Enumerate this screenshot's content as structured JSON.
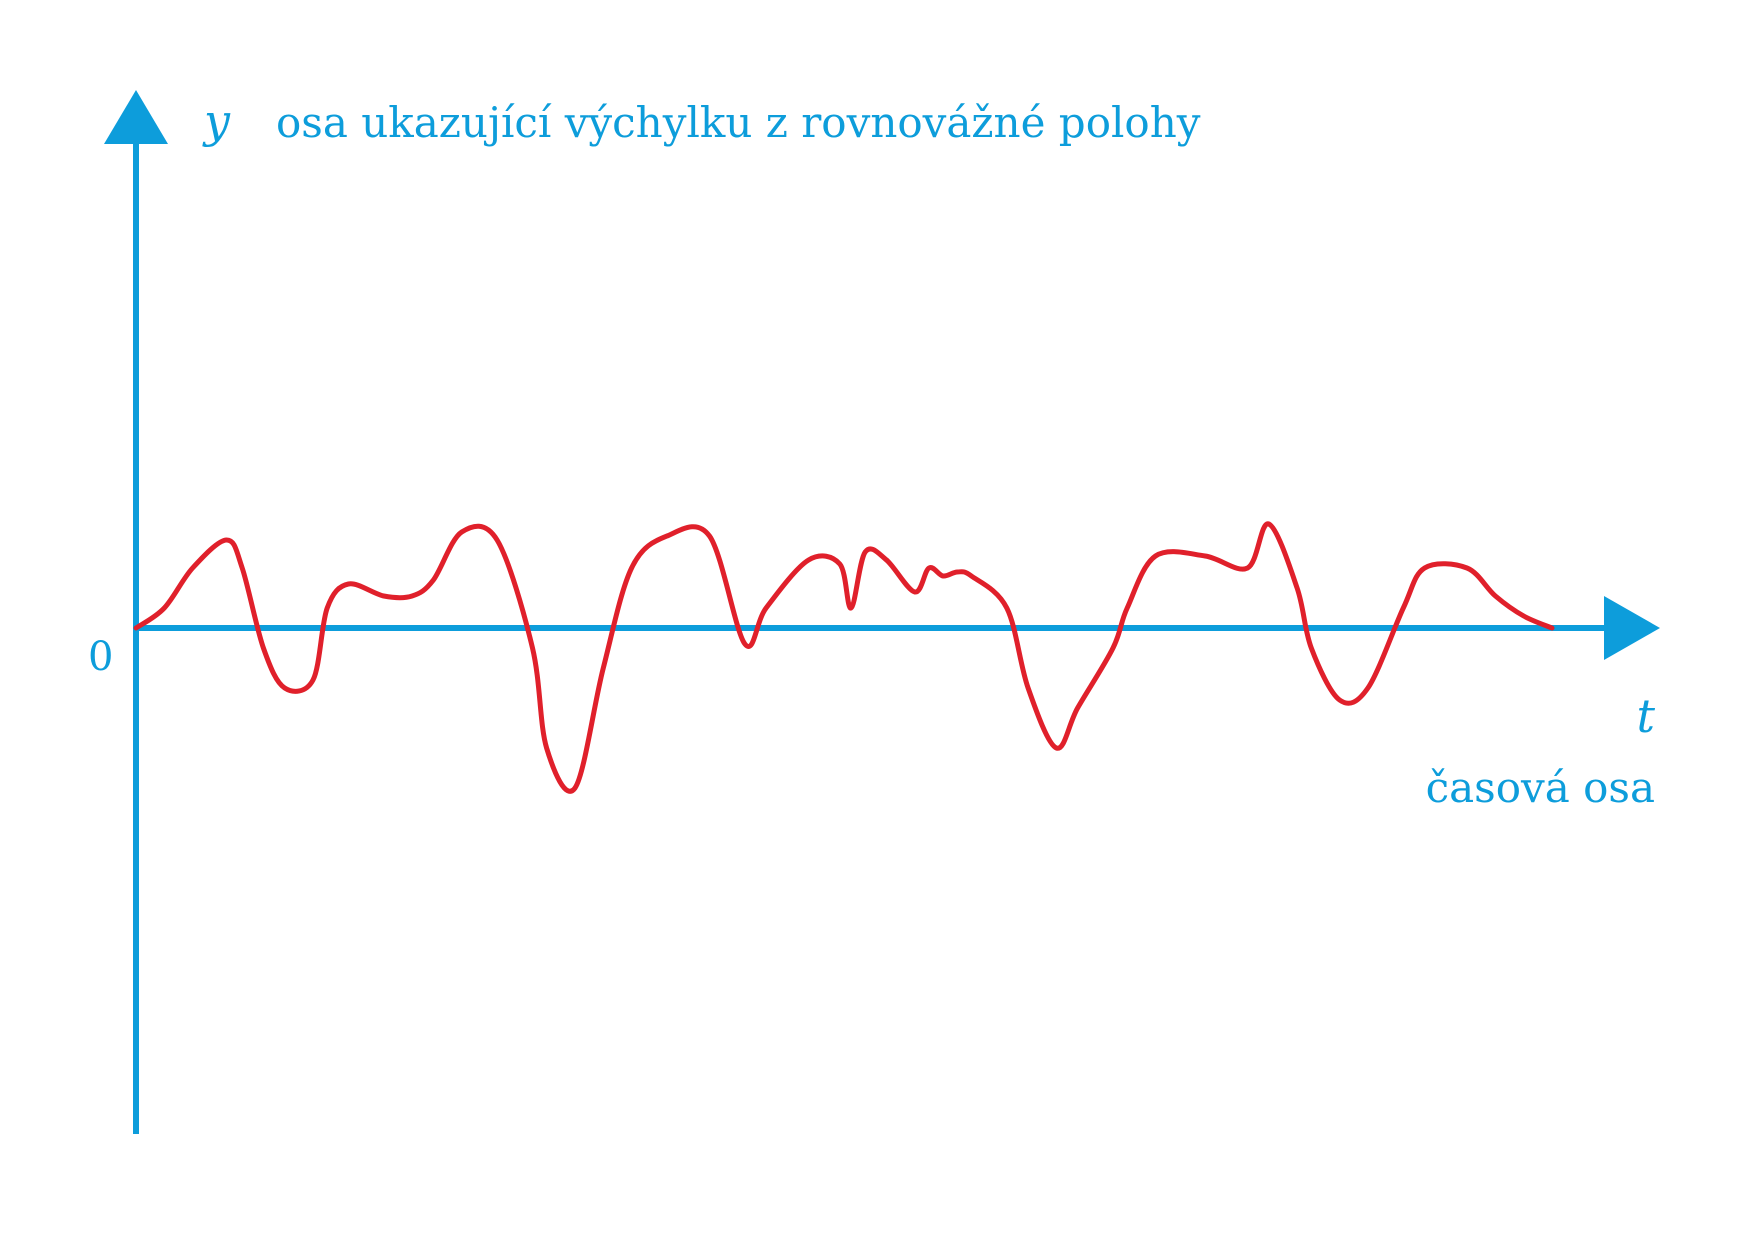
{
  "colors": {
    "axis": "#0d9ddb",
    "curve": "#e0202b",
    "background": "#ffffff"
  },
  "labels": {
    "y_symbol": "y",
    "y_description": "osa ukazující výchylku z rovnovážné polohy",
    "origin": "0",
    "t_symbol": "t",
    "t_description": "časová osa"
  },
  "chart_data": {
    "type": "line",
    "xlabel": "časová osa",
    "ylabel": "osa ukazující výchylku z rovnovážné polohy",
    "xlim": [
      0,
      100
    ],
    "ylim": [
      -5,
      5
    ],
    "grid": false,
    "series": [
      {
        "x": [
          0,
          2,
          4,
          6.4,
          7.5,
          9,
          10.5,
          12.5,
          13.5,
          15,
          17.5,
          19.5,
          21,
          23,
          25.5,
          28,
          29,
          31,
          33,
          35,
          37.5,
          40.5,
          43,
          44.5,
          47.5,
          49.7,
          50.5,
          51.5,
          53,
          55,
          56,
          57,
          58,
          59,
          61.5,
          63,
          65,
          66.5,
          69,
          70,
          72,
          75.5,
          78.5,
          80,
          82,
          83,
          85,
          87,
          89.5,
          91,
          94,
          96,
          98,
          100
        ],
        "y": [
          0,
          0.5,
          1.5,
          2.2,
          1.5,
          -0.5,
          -1.5,
          -1.3,
          0.5,
          1.1,
          0.8,
          0.8,
          1.2,
          2.4,
          2.2,
          -0.5,
          -3.0,
          -4.0,
          -1.0,
          1.5,
          2.3,
          2.3,
          -0.4,
          0.5,
          1.7,
          1.6,
          0.5,
          1.9,
          1.7,
          0.9,
          1.5,
          1.3,
          1.4,
          1.3,
          0.5,
          -1.5,
          -3.0,
          -2.0,
          -0.5,
          0.5,
          1.8,
          1.8,
          1.5,
          2.6,
          1.0,
          -0.5,
          -1.8,
          -1.5,
          0.5,
          1.5,
          1.5,
          0.8,
          0.3,
          0
        ]
      }
    ]
  }
}
